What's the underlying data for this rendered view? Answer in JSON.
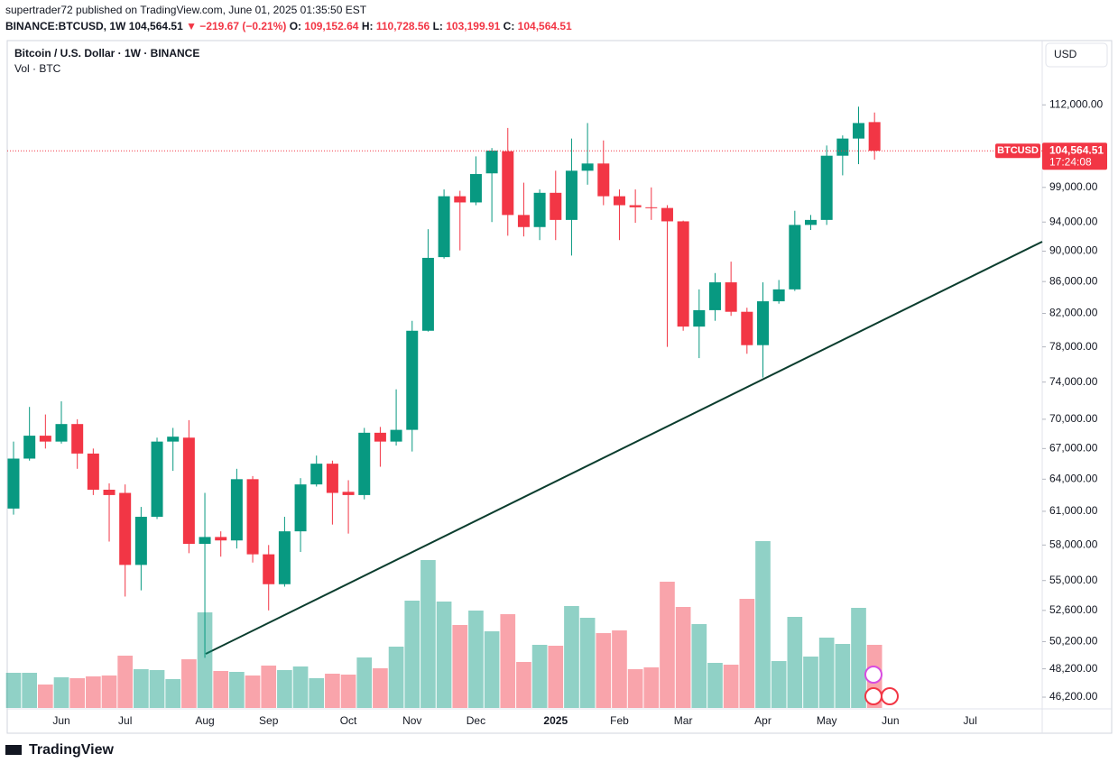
{
  "header": {
    "published": "supertrader72 published on TradingView.com, June 01, 2025 01:35:50 EST",
    "symbol": "BINANCE:BTCUSD, 1W",
    "last": "104,564.51",
    "change": "▼ −219.67 (−0.21%)",
    "ohlc": [
      {
        "label": "O:",
        "value": "109,152.64"
      },
      {
        "label": "H:",
        "value": "110,728.56"
      },
      {
        "label": "L:",
        "value": "103,199.91"
      },
      {
        "label": "C:",
        "value": "104,564.51"
      }
    ]
  },
  "footer": "TradingView",
  "chart_data": {
    "type": "candlestick",
    "title": "Bitcoin / U.S. Dollar · 1W · BINANCE",
    "volume_label": "Vol · BTC",
    "currency": "USD",
    "log_scale": true,
    "grid": false,
    "up_color": "#089981",
    "down_color": "#f23645",
    "categories": [
      null,
      null,
      null,
      "Jun",
      null,
      null,
      null,
      "Jul",
      null,
      null,
      null,
      null,
      "Aug",
      null,
      null,
      null,
      "Sep",
      null,
      null,
      null,
      null,
      "Oct",
      null,
      null,
      null,
      "Nov",
      null,
      null,
      null,
      "Dec",
      null,
      null,
      null,
      null,
      "2025",
      null,
      null,
      null,
      "Feb",
      null,
      null,
      null,
      "Mar",
      null,
      null,
      null,
      null,
      "Apr",
      null,
      null,
      null,
      "May",
      null,
      null,
      null,
      "Jun",
      null,
      null,
      null,
      null,
      "Jul"
    ],
    "open": [
      61250,
      66000,
      68300,
      67700,
      69500,
      66500,
      63000,
      62700,
      56300,
      60500,
      67700,
      68100,
      58100,
      58700,
      58400,
      64000,
      57200,
      54700,
      59200,
      63500,
      65500,
      62800,
      62500,
      68600,
      67700,
      68900,
      79900,
      89200,
      97700,
      96800,
      101100,
      104500,
      95000,
      93300,
      98200,
      94300,
      101500,
      102600,
      97700,
      96400,
      96100,
      96000,
      94100,
      80400,
      82400,
      85900,
      82200,
      78200,
      83500,
      85000,
      93600,
      94300,
      103800,
      106500,
      109152.64,
      null,
      null,
      null,
      null,
      null,
      null
    ],
    "high": [
      67700,
      71300,
      70500,
      71900,
      70000,
      67000,
      63600,
      63500,
      61400,
      68100,
      69100,
      69900,
      62700,
      59200,
      65000,
      64300,
      58000,
      60500,
      64100,
      66300,
      65800,
      63900,
      69100,
      69200,
      73200,
      81100,
      93000,
      98700,
      98500,
      103700,
      105000,
      108200,
      99700,
      98700,
      101500,
      106500,
      109000,
      106200,
      98700,
      98700,
      99000,
      96400,
      94200,
      85000,
      87100,
      88600,
      82700,
      85900,
      86200,
      95600,
      95000,
      105400,
      107000,
      111700,
      110728.56,
      null,
      null,
      null,
      null,
      null,
      null
    ],
    "low": [
      60700,
      65800,
      67000,
      67500,
      65000,
      62500,
      58300,
      53700,
      54200,
      60300,
      64800,
      57300,
      49000,
      57000,
      57700,
      56500,
      52600,
      54500,
      57400,
      63300,
      59800,
      59000,
      62100,
      65200,
      67300,
      66700,
      79800,
      89000,
      90100,
      96400,
      94000,
      92100,
      92000,
      91500,
      91500,
      89400,
      99400,
      96400,
      91500,
      93900,
      94300,
      78000,
      79900,
      76700,
      81100,
      81700,
      77200,
      74500,
      83200,
      84800,
      92900,
      93600,
      100800,
      102500,
      103199.91,
      null,
      null,
      null,
      null,
      null,
      null
    ],
    "close": [
      66000,
      68300,
      67700,
      69500,
      66500,
      63000,
      62500,
      56300,
      60500,
      67700,
      68200,
      58100,
      58700,
      58400,
      64000,
      57200,
      54700,
      59200,
      63500,
      65500,
      62700,
      62500,
      68600,
      67700,
      68900,
      79900,
      89100,
      97700,
      96800,
      101000,
      104600,
      95000,
      93300,
      98200,
      94300,
      101500,
      102600,
      97700,
      96400,
      96100,
      96000,
      94100,
      80400,
      82400,
      85900,
      82200,
      78200,
      83500,
      85000,
      93600,
      94300,
      103800,
      106500,
      109000,
      104564.51,
      null,
      null,
      null,
      null,
      null,
      null
    ],
    "volume": [
      39,
      39,
      26,
      34,
      33,
      35,
      36,
      58,
      43,
      42,
      32,
      54,
      106,
      41,
      40,
      36,
      47,
      42,
      46,
      33,
      38,
      37,
      56,
      44,
      68,
      119,
      164,
      118,
      92,
      108,
      85,
      104,
      51,
      70,
      69,
      113,
      100,
      83,
      86,
      43,
      45,
      140,
      112,
      93,
      50,
      48,
      121,
      185,
      52,
      101,
      57,
      78,
      71,
      111,
      70,
      null,
      null,
      null,
      null,
      null,
      null
    ],
    "ylim": [
      45460,
      123300
    ],
    "yticks": [
      {
        "value": 112000,
        "label": "112,000.00"
      },
      {
        "value": 99000,
        "label": "99,000.00"
      },
      {
        "value": 94000,
        "label": "94,000.00"
      },
      {
        "value": 90000,
        "label": "90,000.00"
      },
      {
        "value": 86000,
        "label": "86,000.00"
      },
      {
        "value": 82000,
        "label": "82,000.00"
      },
      {
        "value": 78000,
        "label": "78,000.00"
      },
      {
        "value": 74000,
        "label": "74,000.00"
      },
      {
        "value": 70000,
        "label": "70,000.00"
      },
      {
        "value": 67000,
        "label": "67,000.00"
      },
      {
        "value": 64000,
        "label": "64,000.00"
      },
      {
        "value": 61000,
        "label": "61,000.00"
      },
      {
        "value": 58000,
        "label": "58,000.00"
      },
      {
        "value": 55000,
        "label": "55,000.00"
      },
      {
        "value": 52600,
        "label": "52,600.00"
      },
      {
        "value": 50200,
        "label": "50,200.00"
      },
      {
        "value": 48200,
        "label": "48,200.00"
      },
      {
        "value": 46200,
        "label": "46,200.00"
      }
    ],
    "price_label": {
      "symbol": "BTCUSD",
      "price": "104,564.51",
      "countdown": "17:24:08"
    }
  }
}
